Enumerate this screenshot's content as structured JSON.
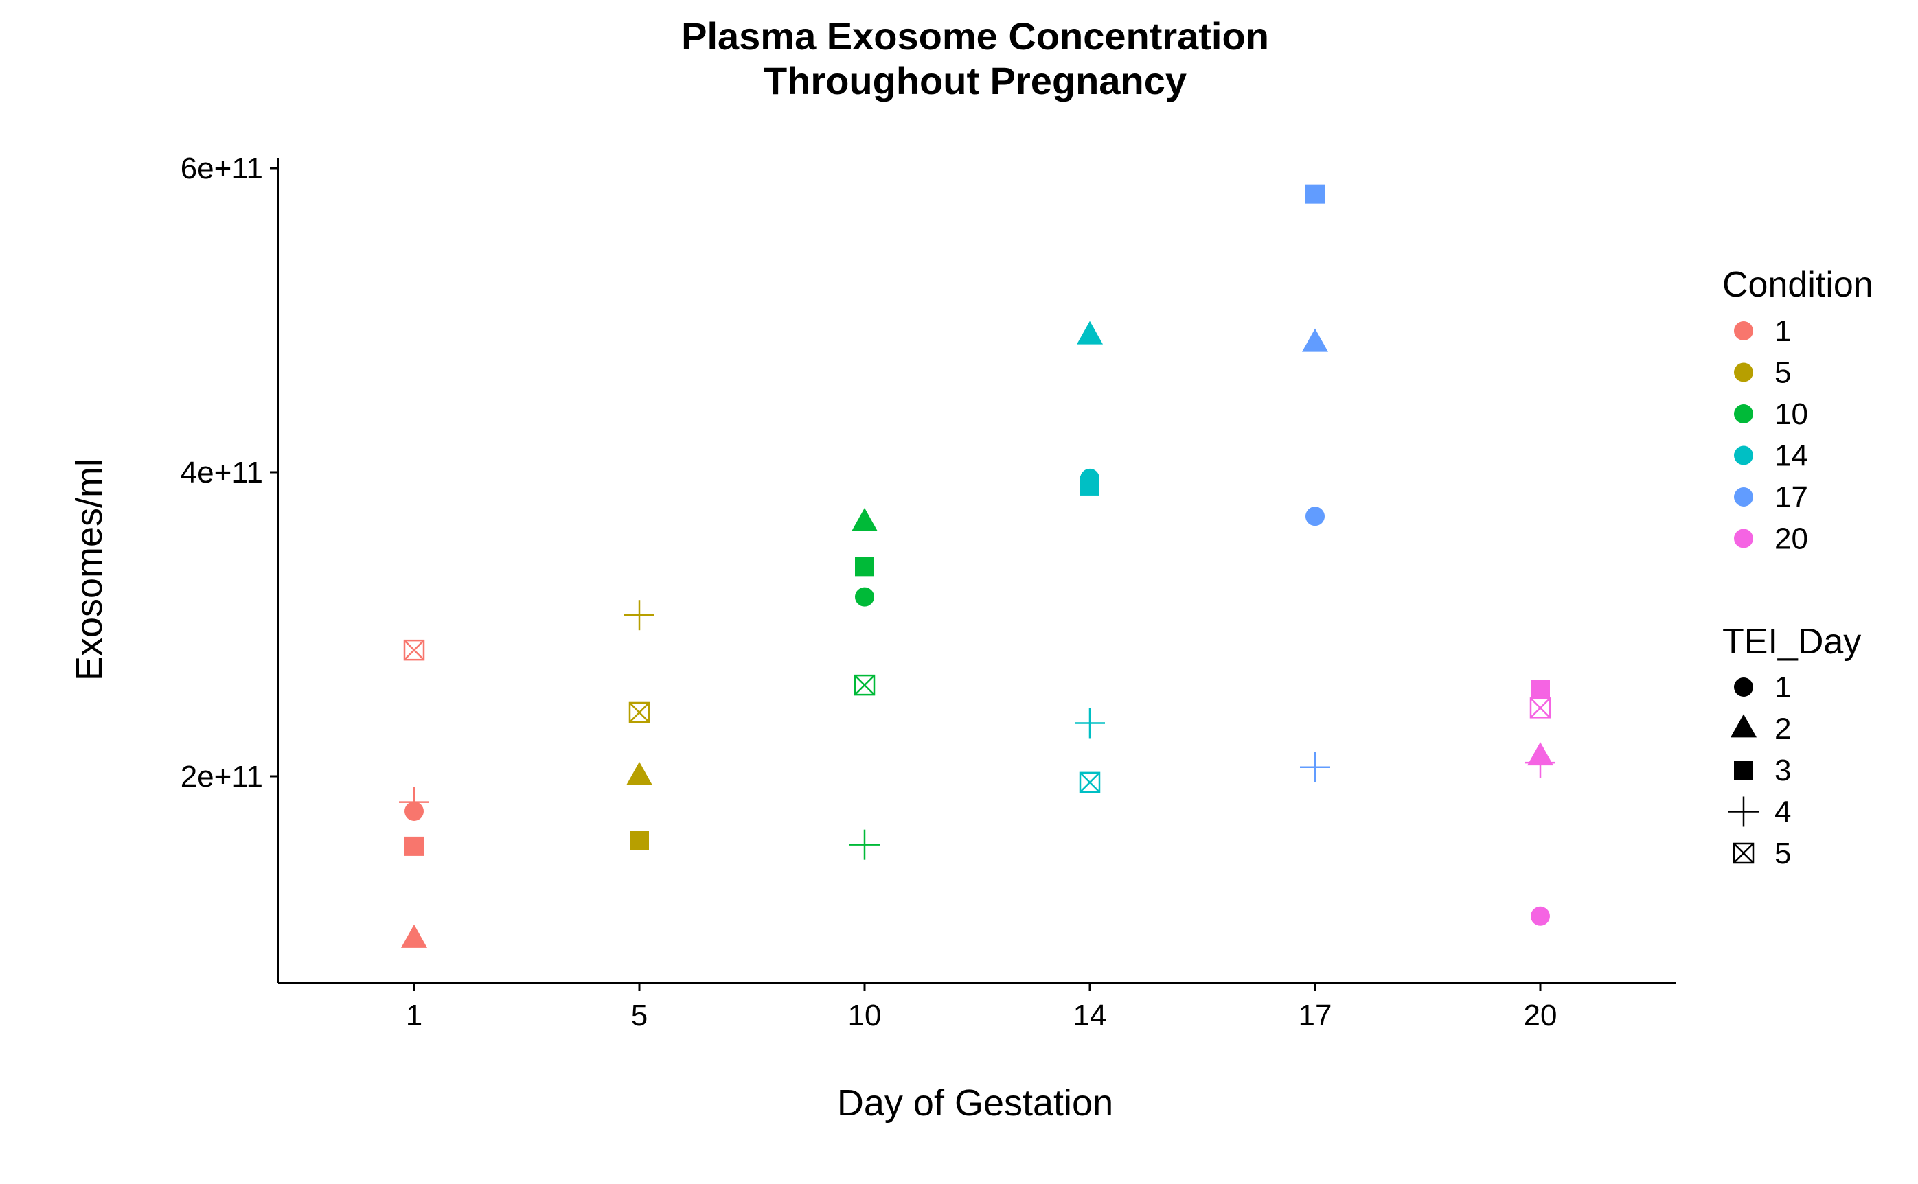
{
  "chart_data": {
    "type": "scatter",
    "title": [
      "Plasma Exosome Concentration",
      "Throughout Pregnancy"
    ],
    "xlabel": "Day of Gestation",
    "ylabel": "Exosomes/ml",
    "x_categories": [
      "1",
      "5",
      "10",
      "14",
      "17",
      "20"
    ],
    "y_ticks": [
      {
        "value": 200000000000,
        "label": "2e+11"
      },
      {
        "value": 400000000000,
        "label": "4e+11"
      },
      {
        "value": 600000000000,
        "label": "6e+11"
      }
    ],
    "ylim": [
      65000000000,
      605000000000
    ],
    "grid": false,
    "legend_placement": "right",
    "legends": {
      "color": {
        "title": "Condition",
        "entries": [
          {
            "label": "1",
            "color": "#F8766D"
          },
          {
            "label": "5",
            "color": "#B79F00"
          },
          {
            "label": "10",
            "color": "#00BA38"
          },
          {
            "label": "14",
            "color": "#00BFC4"
          },
          {
            "label": "17",
            "color": "#619CFF"
          },
          {
            "label": "20",
            "color": "#F564E3"
          }
        ]
      },
      "shape": {
        "title": "TEI_Day",
        "entries": [
          {
            "label": "1",
            "shape": "circle"
          },
          {
            "label": "2",
            "shape": "triangle"
          },
          {
            "label": "3",
            "shape": "square"
          },
          {
            "label": "4",
            "shape": "plus"
          },
          {
            "label": "5",
            "shape": "square-cross"
          }
        ]
      }
    },
    "points": [
      {
        "condition": "1",
        "tei_day": "1",
        "y": 177000000000
      },
      {
        "condition": "1",
        "tei_day": "2",
        "y": 93000000000
      },
      {
        "condition": "1",
        "tei_day": "3",
        "y": 154000000000
      },
      {
        "condition": "1",
        "tei_day": "4",
        "y": 183000000000
      },
      {
        "condition": "1",
        "tei_day": "5",
        "y": 283000000000
      },
      {
        "condition": "5",
        "tei_day": "2",
        "y": 200000000000
      },
      {
        "condition": "5",
        "tei_day": "3",
        "y": 158000000000
      },
      {
        "condition": "5",
        "tei_day": "4",
        "y": 306000000000
      },
      {
        "condition": "5",
        "tei_day": "5",
        "y": 242000000000
      },
      {
        "condition": "10",
        "tei_day": "1",
        "y": 318000000000
      },
      {
        "condition": "10",
        "tei_day": "2",
        "y": 367000000000
      },
      {
        "condition": "10",
        "tei_day": "3",
        "y": 338000000000
      },
      {
        "condition": "10",
        "tei_day": "4",
        "y": 155000000000
      },
      {
        "condition": "10",
        "tei_day": "5",
        "y": 260000000000
      },
      {
        "condition": "14",
        "tei_day": "1",
        "y": 396000000000
      },
      {
        "condition": "14",
        "tei_day": "2",
        "y": 490000000000
      },
      {
        "condition": "14",
        "tei_day": "3",
        "y": 391000000000
      },
      {
        "condition": "14",
        "tei_day": "4",
        "y": 235000000000
      },
      {
        "condition": "14",
        "tei_day": "5",
        "y": 196000000000
      },
      {
        "condition": "17",
        "tei_day": "1",
        "y": 371000000000
      },
      {
        "condition": "17",
        "tei_day": "2",
        "y": 485000000000
      },
      {
        "condition": "17",
        "tei_day": "3",
        "y": 583000000000
      },
      {
        "condition": "17",
        "tei_day": "4",
        "y": 206000000000
      },
      {
        "condition": "17",
        "tei_day": "1",
        "y": 0,
        "_skip": true
      },
      {
        "condition": "20",
        "tei_day": "1",
        "y": 108000000000
      },
      {
        "condition": "20",
        "tei_day": "2",
        "y": 213000000000
      },
      {
        "condition": "20",
        "tei_day": "3",
        "y": 257000000000
      },
      {
        "condition": "20",
        "tei_day": "4",
        "y": 209000000000
      },
      {
        "condition": "20",
        "tei_day": "5",
        "y": 245000000000
      }
    ]
  }
}
